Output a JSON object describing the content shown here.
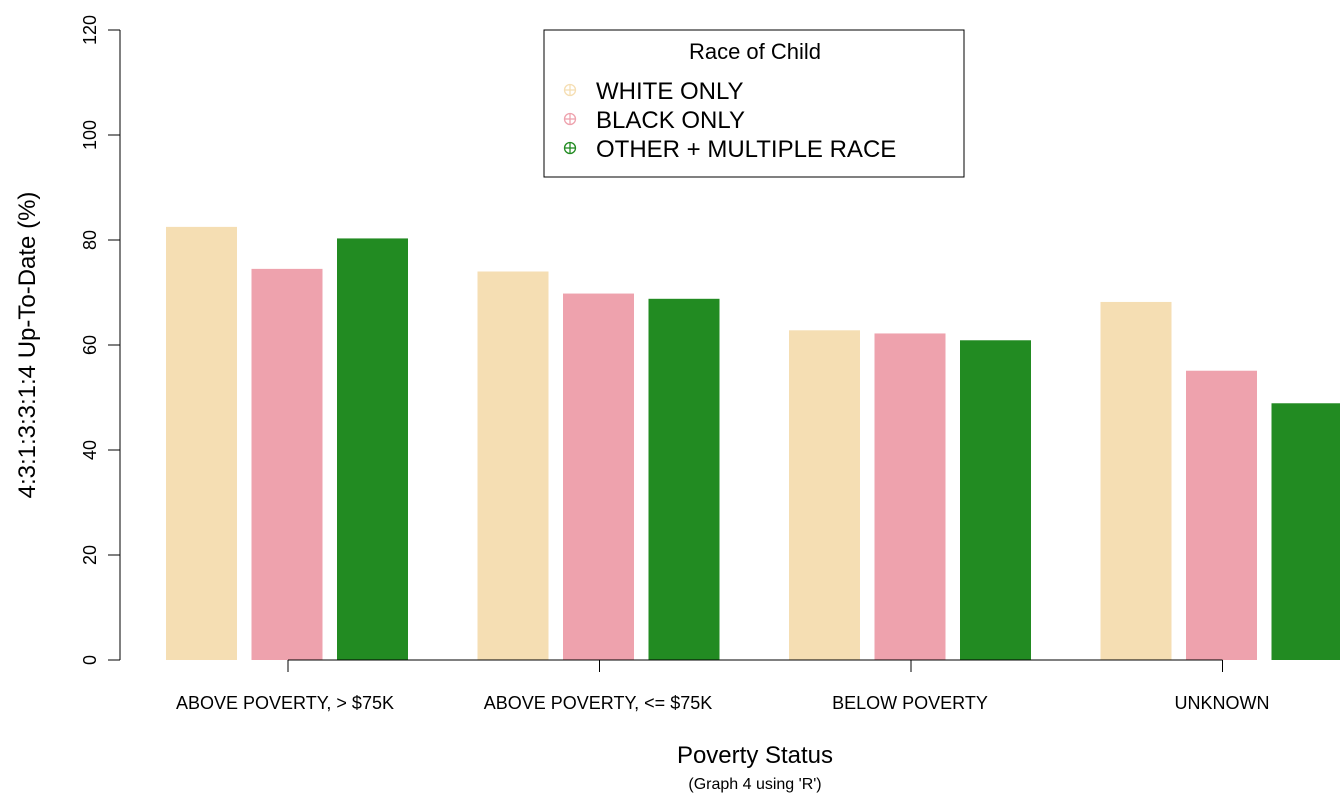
{
  "chart_data": {
    "type": "bar",
    "categories": [
      "ABOVE POVERTY, > $75K",
      "ABOVE POVERTY, <= $75K",
      "BELOW POVERTY",
      "UNKNOWN"
    ],
    "series": [
      {
        "name": "WHITE ONLY",
        "color": "#F5DEB3",
        "values": [
          82.5,
          74.0,
          62.8,
          68.2
        ]
      },
      {
        "name": "BLACK ONLY",
        "color": "#EEA2AD",
        "values": [
          74.5,
          69.8,
          62.2,
          55.1
        ]
      },
      {
        "name": "OTHER + MULTIPLE RACE",
        "color": "#228B22",
        "values": [
          80.3,
          68.8,
          60.9,
          48.9
        ]
      }
    ],
    "ylim": [
      0,
      120
    ],
    "yticks": [
      0,
      20,
      40,
      60,
      80,
      100,
      120
    ],
    "ylabel": "4:3:1:3:3:1:4 Up-To-Date (%)",
    "xlabel": "Poverty Status",
    "subtitle": "(Graph 4 using 'R')",
    "legend": {
      "title": "Race of Child",
      "position": "top-center"
    },
    "grid": false
  }
}
